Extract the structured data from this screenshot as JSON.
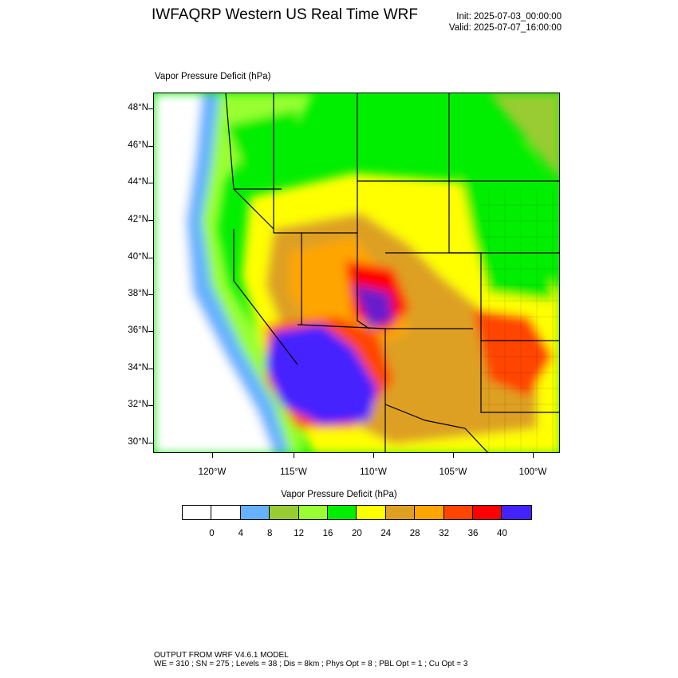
{
  "header": {
    "title": "IWFAQRP Western US Real Time WRF",
    "init": "Init: 2025-07-03_00:00:00",
    "valid": "Valid: 2025-07-07_16:00:00"
  },
  "map": {
    "field_label": "Vapor Pressure Deficit   (hPa)",
    "lat_labels": [
      "48°N",
      "46°N",
      "44°N",
      "42°N",
      "40°N",
      "38°N",
      "36°N",
      "34°N",
      "32°N",
      "30°N"
    ],
    "lon_labels": [
      "120°W",
      "115°W",
      "110°W",
      "105°W",
      "100°W"
    ]
  },
  "colorbar": {
    "title": "Vapor Pressure Deficit  (hPa)",
    "levels": [
      "0",
      "4",
      "8",
      "12",
      "16",
      "20",
      "24",
      "28",
      "32",
      "36",
      "40"
    ],
    "colors": [
      "#ffffff",
      "#ffffff",
      "#66b2ff",
      "#99cc33",
      "#99ff33",
      "#00ee00",
      "#ffff00",
      "#dda020",
      "#ffa500",
      "#ff4500",
      "#ff0000",
      "#4422ff"
    ]
  },
  "footer": {
    "line1": "OUTPUT FROM WRF V4.6.1 MODEL",
    "line2": "WE = 310 ; SN = 275 ; Levels = 38 ; Dis = 8km ; Phys Opt = 8 ; PBL Opt = 1 ; Cu Opt = 3"
  }
}
